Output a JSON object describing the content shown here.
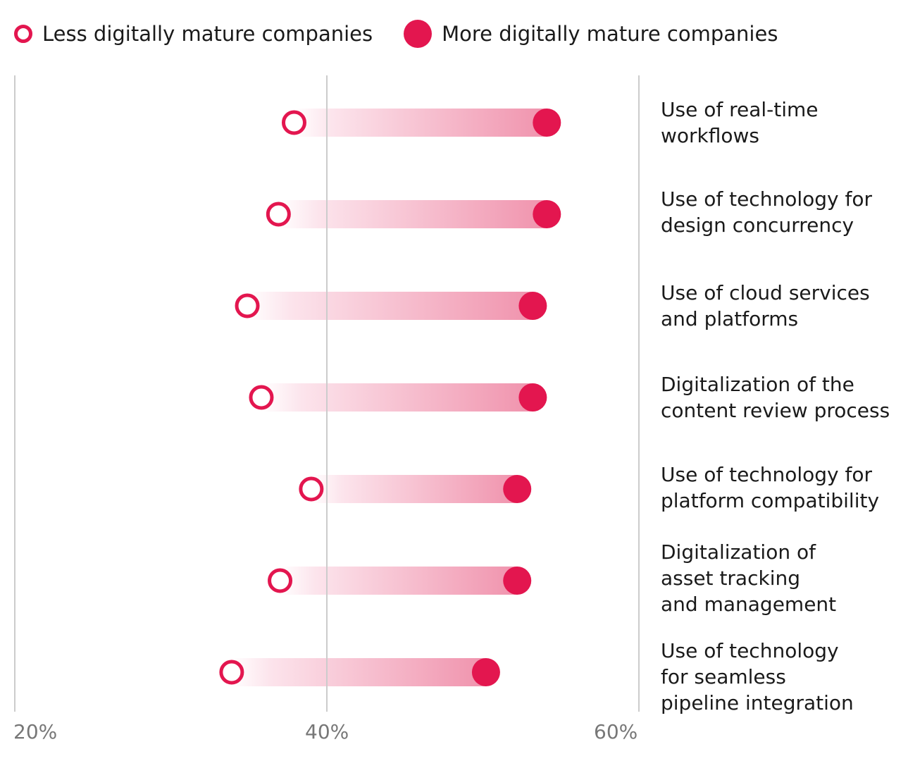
{
  "legend": {
    "less_label": "Less digitally mature companies",
    "more_label": "More digitally mature companies"
  },
  "colors": {
    "accent": "#e3164f",
    "bar_light": "#fce4ec",
    "bar_dark": "#f093ad",
    "grid": "#cccccc",
    "tick_text": "#777777"
  },
  "chart_data": {
    "type": "dumbbell",
    "x_ticks": [
      "20%",
      "40%",
      "60%"
    ],
    "xlim": [
      20,
      60
    ],
    "grid": true,
    "legend_position": "top-left",
    "categories": [
      "Use of real-time\nworkflows",
      "Use of technology for\ndesign concurrency",
      "Use of cloud services\nand platforms",
      "Digitalization of the\ncontent review process",
      "Use of technology for\nplatform compatibility",
      "Digitalization of\nasset tracking\nand management",
      "Use of technology\nfor seamless\npipeline integration"
    ],
    "series": [
      {
        "name": "Less digitally mature companies",
        "values": [
          37.9,
          36.9,
          34.9,
          35.8,
          39.0,
          37.0,
          33.9
        ]
      },
      {
        "name": "More digitally mature companies",
        "values": [
          54.1,
          54.1,
          53.2,
          53.2,
          52.2,
          52.2,
          50.2
        ]
      }
    ]
  }
}
